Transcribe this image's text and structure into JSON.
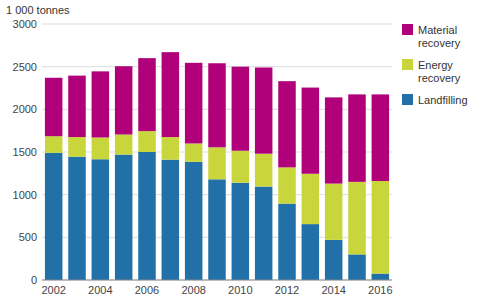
{
  "chart_data": {
    "type": "bar",
    "stacked": true,
    "y_label": "1 000 tonnes",
    "categories": [
      "2002",
      null,
      "2004",
      null,
      "2006",
      null,
      "2008",
      null,
      "2010",
      null,
      "2012",
      null,
      "2014",
      null,
      "2016"
    ],
    "series": [
      {
        "name": "Landfilling",
        "color": "#2171a8",
        "values": [
          1490,
          1445,
          1415,
          1470,
          1500,
          1410,
          1385,
          1180,
          1140,
          1095,
          895,
          655,
          470,
          300,
          75
        ]
      },
      {
        "name": "Energy\nrecovery",
        "color": "#c8d63c",
        "values": [
          195,
          230,
          255,
          235,
          245,
          265,
          215,
          375,
          375,
          385,
          425,
          590,
          660,
          850,
          1085
        ]
      },
      {
        "name": "Material\nrecovery",
        "color": "#b0007a",
        "values": [
          685,
          720,
          775,
          800,
          855,
          995,
          945,
          985,
          985,
          1010,
          1010,
          1010,
          1010,
          1025,
          1015
        ]
      }
    ],
    "ylim": [
      0,
      3000
    ],
    "yticks": [
      0,
      500,
      1000,
      1500,
      2000,
      2500,
      3000
    ],
    "grid": true,
    "legend": "right"
  }
}
